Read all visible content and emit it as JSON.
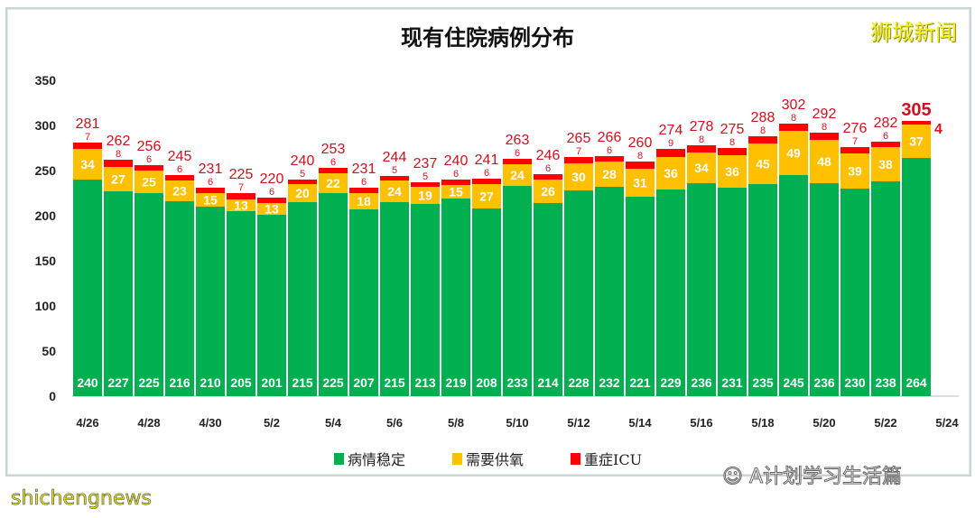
{
  "brand_watermark": "狮城新闻",
  "wechat_watermark": "A计划学习生活篇",
  "source_watermark": "shichengnews",
  "chart_data": {
    "type": "bar",
    "stacked": true,
    "title": "现有住院病例分布",
    "xlabel": "",
    "ylabel": "",
    "ylim": [
      0,
      350
    ],
    "yticks": [
      0,
      50,
      100,
      150,
      200,
      250,
      300,
      350
    ],
    "grid": false,
    "legend_position": "bottom",
    "x_tick_labels": [
      "4/26",
      "4/28",
      "4/30",
      "5/2",
      "5/4",
      "5/6",
      "5/8",
      "5/10",
      "5/12",
      "5/14",
      "5/16",
      "5/18",
      "5/20",
      "5/22",
      "5/24"
    ],
    "categories": [
      "4/26",
      "4/27",
      "4/28",
      "4/29",
      "4/30",
      "5/1",
      "5/2",
      "5/3",
      "5/4",
      "5/5",
      "5/6",
      "5/7",
      "5/8",
      "5/9",
      "5/10",
      "5/11",
      "5/12",
      "5/13",
      "5/14",
      "5/15",
      "5/16",
      "5/17",
      "5/18",
      "5/19",
      "5/20",
      "5/21",
      "5/22",
      "5/23"
    ],
    "series": [
      {
        "name": "病情稳定",
        "color": "#00b050",
        "values": [
          240,
          227,
          225,
          216,
          210,
          205,
          201,
          215,
          225,
          207,
          215,
          213,
          219,
          208,
          233,
          214,
          228,
          232,
          221,
          229,
          236,
          231,
          235,
          245,
          236,
          230,
          238,
          264
        ]
      },
      {
        "name": "需要供氧",
        "color": "#ffc000",
        "values": [
          34,
          27,
          25,
          23,
          15,
          13,
          13,
          20,
          22,
          18,
          24,
          19,
          15,
          27,
          24,
          26,
          30,
          28,
          31,
          36,
          34,
          36,
          45,
          49,
          48,
          39,
          38,
          37
        ]
      },
      {
        "name": "重症ICU",
        "color": "#ff0000",
        "values": [
          7,
          8,
          6,
          6,
          6,
          7,
          6,
          5,
          6,
          6,
          5,
          5,
          6,
          6,
          6,
          6,
          7,
          6,
          8,
          9,
          8,
          8,
          8,
          8,
          8,
          7,
          6,
          4
        ]
      }
    ],
    "totals": [
      281,
      262,
      256,
      245,
      231,
      225,
      220,
      240,
      253,
      231,
      244,
      237,
      240,
      241,
      263,
      246,
      265,
      266,
      260,
      274,
      278,
      275,
      288,
      302,
      292,
      276,
      282,
      305
    ]
  }
}
